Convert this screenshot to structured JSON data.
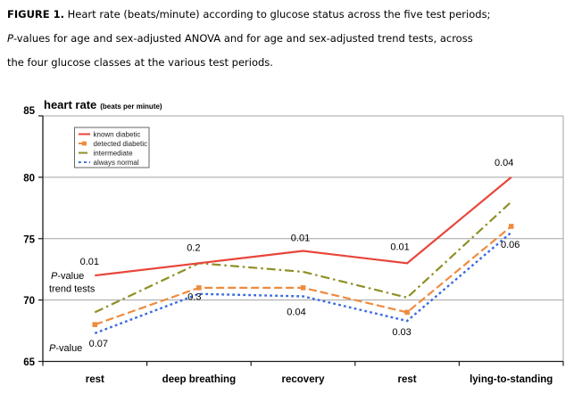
{
  "caption": {
    "label": "FIGURE 1.",
    "line1": " Heart rate (beats/minute) according to glucose status across the five test periods;",
    "line2_italic": "P",
    "line2": "-values for age and sex-adjusted ANOVA and for age and sex-adjusted trend tests, across",
    "line3": "the four glucose classes at the various test periods."
  },
  "chart_data": {
    "type": "line",
    "title": "heart rate",
    "title_suffix": "(beats per minute)",
    "xlabel": "",
    "ylabel": "heart rate (beats per minute)",
    "categories": [
      "rest",
      "deep breathing",
      "recovery",
      "rest",
      "lying-to-standing"
    ],
    "ylim": [
      65,
      85
    ],
    "yticks": [
      85,
      80,
      75,
      70,
      65
    ],
    "grid": "horizontal",
    "legend_position": "top-left-inside",
    "series": [
      {
        "name": "known diabetic",
        "color": "#e9453a",
        "line_style": "solid",
        "marker": "none",
        "values": [
          72,
          73,
          74,
          73,
          80
        ]
      },
      {
        "name": "detected diabetic",
        "color": "#ef8b3e",
        "line_style": "dashed",
        "marker": "square",
        "values": [
          68,
          71,
          71,
          69,
          76
        ]
      },
      {
        "name": "intermediate",
        "color": "#8f8f26",
        "line_style": "dash-dot",
        "marker": "none",
        "values": [
          69,
          73,
          72.3,
          70.2,
          78
        ]
      },
      {
        "name": "always normal",
        "color": "#3c6be0",
        "line_style": "dotted",
        "marker": "none",
        "values": [
          67.3,
          70.5,
          70.3,
          68.3,
          75.5
        ]
      }
    ],
    "annotations": {
      "trend_pvalues": [
        "0.01",
        "0.2",
        "0.01",
        "0.01",
        "0.04"
      ],
      "anova_pvalues": [
        "0.07",
        "0.3",
        "0.04",
        "0.03",
        "0.06"
      ],
      "trend_axis_label_italic": "P",
      "trend_axis_label_rest": "-value",
      "trend_axis_label_line2": "trend tests",
      "anova_axis_label_italic": "P",
      "anova_axis_label_rest": "-value"
    },
    "colors": {
      "gridline": "#a3a3a3",
      "axis": "#1a1a1a",
      "legend_border": "#666666",
      "text": "#000000"
    }
  }
}
